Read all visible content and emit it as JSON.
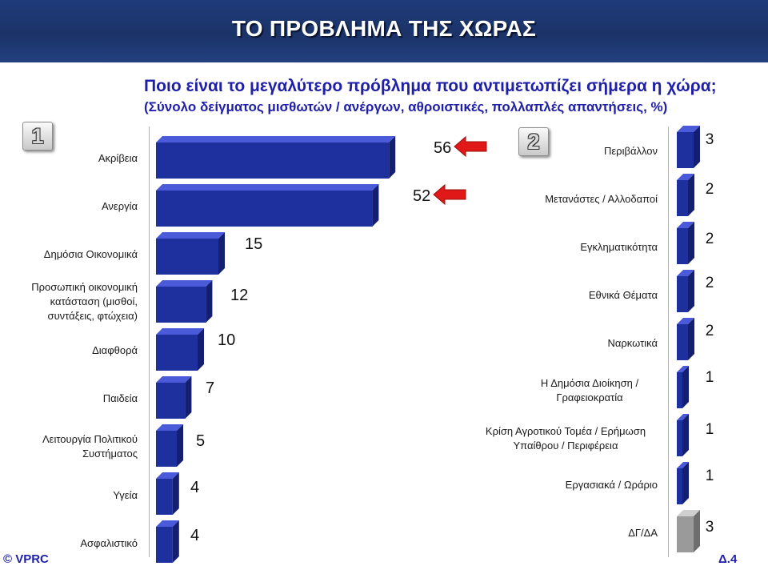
{
  "header": {
    "title": "ΤΟ ΠΡΟΒΛΗΜΑ ΤΗΣ ΧΩΡΑΣ"
  },
  "question": {
    "line1": "Ποιο είναι το μεγαλύτερο πρόβλημα που αντιμετωπίζει σήμερα η χώρα;",
    "line2": "(Σύνολο δείγματος μισθωτών / ανέργων, αθροιστικές, πολλαπλές απαντήσεις, %)"
  },
  "badges": {
    "left": "1",
    "right": "2"
  },
  "footer": {
    "copyright": "© VPRC",
    "slide": "Δ.4"
  },
  "colors": {
    "header_bg": "#1f3b7a",
    "bar_front": "#1e2f9e",
    "bar_top": "#4a5ad8",
    "bar_side": "#141f72",
    "gray_bar": "#9a9a9a",
    "arrow": "#e01818",
    "subtitle": "#1f1fa8"
  },
  "chart_data": [
    {
      "type": "bar",
      "orientation": "horizontal",
      "categories": [
        "Ακρίβεια",
        "Ανεργία",
        "Δημόσια Οικονομικά",
        "Προσωπική οικονομική κατάσταση (μισθοί, συντάξεις, φτώχεια)",
        "Διαφθορά",
        "Παιδεία",
        "Λειτουργία Πολιτικού Συστήματος",
        "Υγεία",
        "Ασφαλιστικό"
      ],
      "values": [
        56,
        52,
        15,
        12,
        10,
        7,
        5,
        4,
        4
      ],
      "labels": [
        "56",
        "52",
        "15",
        "12",
        "10",
        "7",
        "5",
        "4",
        "4"
      ],
      "highlighted": [
        "Ακρίβεια",
        "Ανεργία"
      ]
    },
    {
      "type": "bar",
      "orientation": "horizontal",
      "categories": [
        "Περιβάλλον",
        "Μετανάστες / Αλλοδαποί",
        "Εγκληματικότητα",
        "Εθνικά Θέματα",
        "Ναρκωτικά",
        "Η Δημόσια Διοίκηση / Γραφειοκρατία",
        "Κρίση Αγροτικού Τομέα / Ερήμωση Υπαίθρου / Περιφέρεια",
        "Εργασιακά / Ωράριο",
        "ΔΓ/ΔΑ"
      ],
      "values": [
        3,
        2,
        2,
        2,
        2,
        1,
        1,
        1,
        3
      ],
      "labels": [
        "3",
        "2",
        "2",
        "2",
        "2",
        "1",
        "1",
        "1",
        "3"
      ]
    }
  ]
}
